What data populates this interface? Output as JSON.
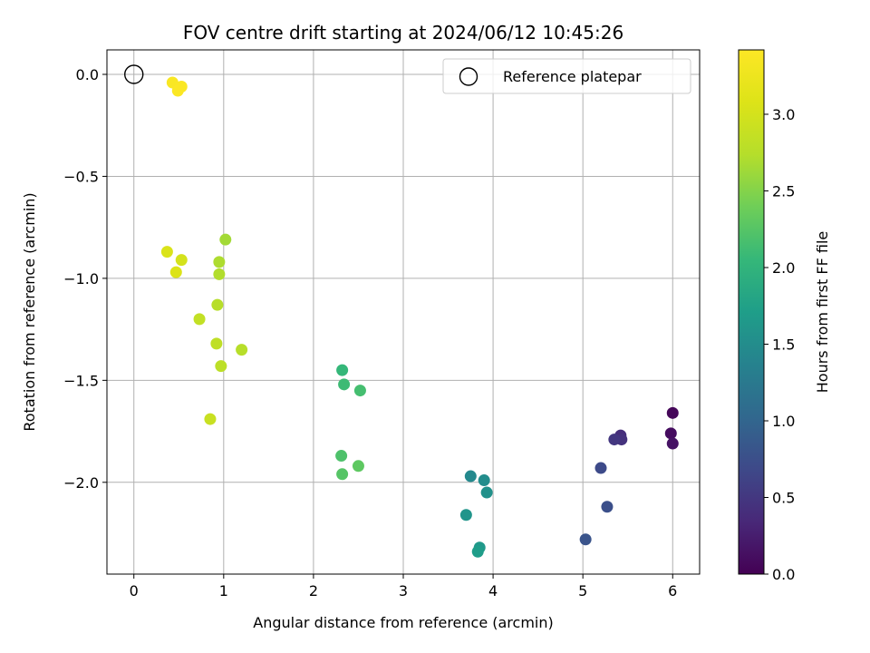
{
  "chart_data": {
    "type": "scatter",
    "title": "FOV centre drift starting at 2024/06/12 10:45:26",
    "xlabel": "Angular distance from reference (arcmin)",
    "ylabel": "Rotation from reference (arcmin)",
    "xlim": [
      -0.3,
      6.3
    ],
    "ylim": [
      -2.45,
      0.12
    ],
    "x_ticks": [
      0,
      1,
      2,
      3,
      4,
      5,
      6
    ],
    "x_tick_labels": [
      "0",
      "1",
      "2",
      "3",
      "4",
      "5",
      "6"
    ],
    "y_ticks": [
      0.0,
      -0.5,
      -1.0,
      -1.5,
      -2.0
    ],
    "y_tick_labels": [
      "0.0",
      "−0.5",
      "−1.0",
      "−1.5",
      "−2.0"
    ],
    "grid": true,
    "colormap": "viridis",
    "colorbar": {
      "label": "Hours from first FF file",
      "range": [
        0.0,
        3.42
      ],
      "ticks": [
        0.0,
        0.5,
        1.0,
        1.5,
        2.0,
        2.5,
        3.0
      ],
      "tick_labels": [
        "0.0",
        "0.5",
        "1.0",
        "1.5",
        "2.0",
        "2.5",
        "3.0"
      ]
    },
    "legend": {
      "placement": "upper right",
      "entries": [
        {
          "label": "Reference platepar",
          "marker": "open-circle"
        }
      ]
    },
    "reference_point": {
      "x": 0.0,
      "y": 0.0
    },
    "points": [
      {
        "x": 6.0,
        "y": -1.66,
        "hours": 0.05
      },
      {
        "x": 5.98,
        "y": -1.76,
        "hours": 0.1
      },
      {
        "x": 6.0,
        "y": -1.81,
        "hours": 0.15
      },
      {
        "x": 5.42,
        "y": -1.77,
        "hours": 0.4
      },
      {
        "x": 5.43,
        "y": -1.79,
        "hours": 0.45
      },
      {
        "x": 5.35,
        "y": -1.79,
        "hours": 0.5
      },
      {
        "x": 5.2,
        "y": -1.93,
        "hours": 0.7
      },
      {
        "x": 5.27,
        "y": -2.12,
        "hours": 0.75
      },
      {
        "x": 5.03,
        "y": -2.28,
        "hours": 0.8
      },
      {
        "x": 3.75,
        "y": -1.97,
        "hours": 1.45
      },
      {
        "x": 3.9,
        "y": -1.99,
        "hours": 1.5
      },
      {
        "x": 3.93,
        "y": -2.05,
        "hours": 1.55
      },
      {
        "x": 3.7,
        "y": -2.16,
        "hours": 1.6
      },
      {
        "x": 3.85,
        "y": -2.32,
        "hours": 1.65
      },
      {
        "x": 3.83,
        "y": -2.34,
        "hours": 1.7
      },
      {
        "x": 2.32,
        "y": -1.45,
        "hours": 2.05
      },
      {
        "x": 2.34,
        "y": -1.52,
        "hours": 2.1
      },
      {
        "x": 2.52,
        "y": -1.55,
        "hours": 2.15
      },
      {
        "x": 2.31,
        "y": -1.87,
        "hours": 2.2
      },
      {
        "x": 2.32,
        "y": -1.96,
        "hours": 2.25
      },
      {
        "x": 2.5,
        "y": -1.92,
        "hours": 2.3
      },
      {
        "x": 1.02,
        "y": -0.81,
        "hours": 2.65
      },
      {
        "x": 0.95,
        "y": -0.92,
        "hours": 2.7
      },
      {
        "x": 0.95,
        "y": -0.98,
        "hours": 2.72
      },
      {
        "x": 0.93,
        "y": -1.13,
        "hours": 2.75
      },
      {
        "x": 1.2,
        "y": -1.35,
        "hours": 2.75
      },
      {
        "x": 0.97,
        "y": -1.43,
        "hours": 2.8
      },
      {
        "x": 0.92,
        "y": -1.32,
        "hours": 2.82
      },
      {
        "x": 0.73,
        "y": -1.2,
        "hours": 2.85
      },
      {
        "x": 0.85,
        "y": -1.69,
        "hours": 2.9
      },
      {
        "x": 0.53,
        "y": -0.91,
        "hours": 3.0
      },
      {
        "x": 0.37,
        "y": -0.87,
        "hours": 3.05
      },
      {
        "x": 0.47,
        "y": -0.97,
        "hours": 3.07
      },
      {
        "x": 0.43,
        "y": -0.04,
        "hours": 3.38
      },
      {
        "x": 0.53,
        "y": -0.06,
        "hours": 3.39
      },
      {
        "x": 0.49,
        "y": -0.08,
        "hours": 3.4
      }
    ]
  }
}
